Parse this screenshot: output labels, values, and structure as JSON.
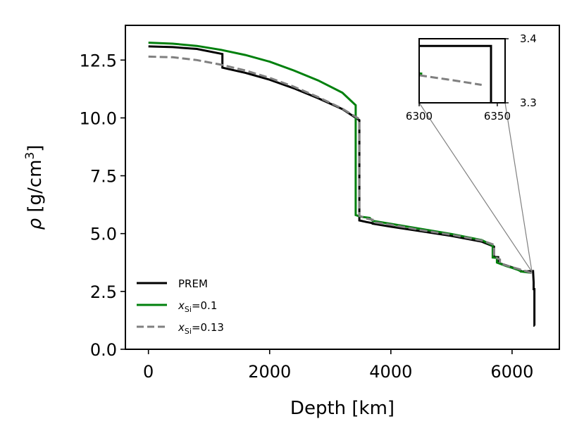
{
  "chart_data": {
    "type": "line",
    "xlabel": "Depth [km]",
    "ylabel_symbol": "ρ",
    "ylabel_unit": " [g/cm",
    "ylabel_unit_exp": "3",
    "ylabel_unit_close": "]",
    "xlim": [
      -380,
      6780
    ],
    "ylim": [
      0,
      14.0
    ],
    "x_ticks": [
      0,
      2000,
      4000,
      6000
    ],
    "x_tick_labels": [
      "0",
      "2000",
      "4000",
      "6000"
    ],
    "y_ticks": [
      0,
      2.5,
      5.0,
      7.5,
      10.0,
      12.5
    ],
    "y_tick_labels": [
      "0.0",
      "2.5",
      "5.0",
      "7.5",
      "10.0",
      "12.5"
    ],
    "grid": false,
    "legend_position": "lower-left",
    "series": [
      {
        "name": "PREM",
        "color": "#000000",
        "dash": "solid",
        "x": [
          0,
          400,
          800,
          1221,
          1221,
          1600,
          2000,
          2400,
          2800,
          3200,
          3480,
          3480,
          3600,
          3700,
          3700,
          4000,
          4500,
          5000,
          5500,
          5701,
          5701,
          5771,
          5771,
          5900,
          6000,
          6151,
          6151,
          6250,
          6346,
          6346,
          6356,
          6356,
          6368,
          6368,
          6371
        ],
        "y": [
          13.09,
          13.06,
          12.98,
          12.76,
          12.17,
          11.95,
          11.65,
          11.28,
          10.85,
          10.38,
          9.9,
          5.57,
          5.5,
          5.45,
          5.43,
          5.3,
          5.1,
          4.9,
          4.65,
          4.44,
          3.99,
          3.98,
          3.73,
          3.63,
          3.54,
          3.38,
          3.36,
          3.37,
          3.38,
          3.38,
          2.9,
          2.6,
          2.6,
          1.02,
          1.02
        ]
      },
      {
        "name": "x_Si=0.1",
        "name_base": "x",
        "name_sub": "Si",
        "name_value": "=0.1",
        "color": "#00800d",
        "dash": "solid",
        "x": [
          0,
          400,
          800,
          1200,
          1600,
          2000,
          2400,
          2800,
          3200,
          3420,
          3420,
          3500,
          3650,
          3700,
          4000,
          4500,
          5000,
          5500,
          5680,
          5680,
          5750,
          5750,
          5900,
          6000,
          6100,
          6150,
          6300
        ],
        "y": [
          13.25,
          13.21,
          13.11,
          12.94,
          12.72,
          12.43,
          12.05,
          11.62,
          11.09,
          10.55,
          5.8,
          5.73,
          5.68,
          5.55,
          5.42,
          5.2,
          4.98,
          4.72,
          4.48,
          3.97,
          3.95,
          3.75,
          3.6,
          3.52,
          3.43,
          3.36,
          3.31
        ]
      },
      {
        "name": "x_Si=0.13",
        "name_base": "x",
        "name_sub": "Si",
        "name_value": "=0.13",
        "color": "#808080",
        "dash": "dashed",
        "x": [
          0,
          400,
          800,
          1200,
          1600,
          2000,
          2400,
          2800,
          3200,
          3480,
          3480,
          3600,
          3700,
          3700,
          4000,
          4500,
          5000,
          5500,
          5700,
          5700,
          5800,
          5800,
          6000,
          6200,
          6300,
          6340
        ],
        "y": [
          12.65,
          12.62,
          12.5,
          12.3,
          12.05,
          11.73,
          11.35,
          10.9,
          10.4,
          9.95,
          5.77,
          5.65,
          5.6,
          5.5,
          5.38,
          5.15,
          4.95,
          4.7,
          4.52,
          4.0,
          3.88,
          3.7,
          3.55,
          3.4,
          3.31,
          3.29
        ]
      }
    ],
    "inset": {
      "xlim": [
        6300,
        6355
      ],
      "ylim": [
        3.3,
        3.4
      ],
      "x_ticks": [
        6300,
        6350
      ],
      "x_tick_labels": [
        "6300",
        "6350"
      ],
      "y_ticks": [
        3.3,
        3.4
      ],
      "y_tick_labels": [
        "3.3",
        "3.4"
      ],
      "series": [
        {
          "name": "PREM",
          "color": "#000000",
          "dash": "solid",
          "x": [
            6300,
            6346,
            6346
          ],
          "y": [
            3.3888,
            3.3888,
            3.29
          ]
        },
        {
          "name": "x_Si=0.1",
          "color": "#00800d",
          "dash": "solid",
          "x": [
            6300,
            6302
          ],
          "y": [
            3.3458,
            3.3455
          ]
        },
        {
          "name": "x_Si=0.13",
          "color": "#808080",
          "dash": "dashed",
          "x": [
            6300,
            6322,
            6340
          ],
          "y": [
            3.343,
            3.335,
            3.328
          ]
        }
      ]
    }
  }
}
